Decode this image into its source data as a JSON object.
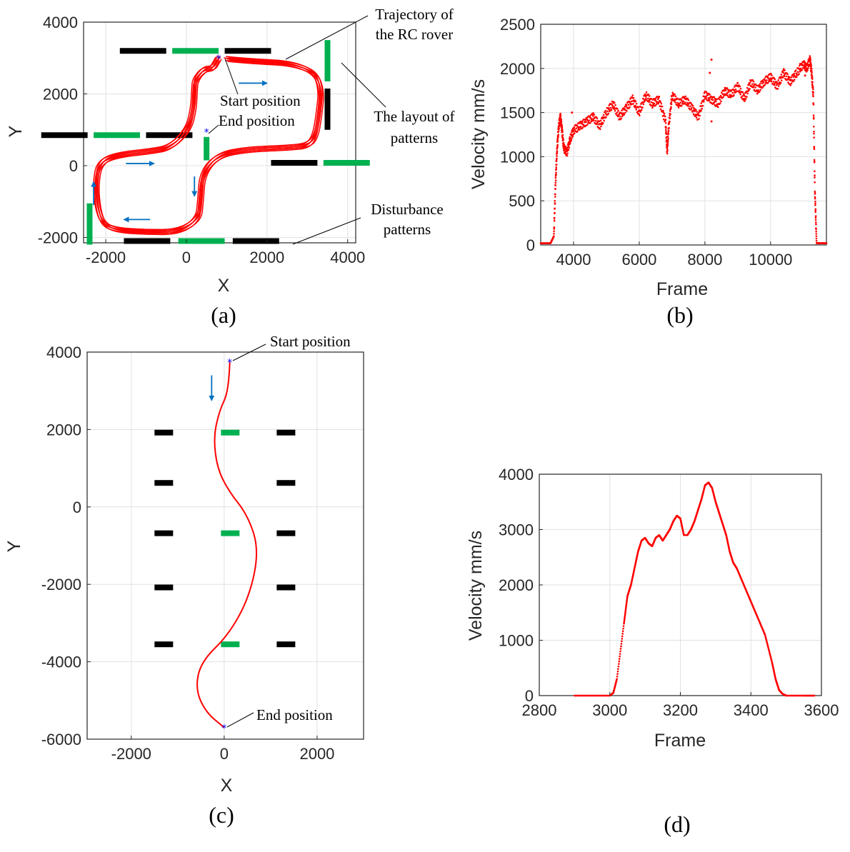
{
  "chart_data": [
    {
      "id": "a",
      "type": "trajectory",
      "panel_label": "(a)",
      "xlabel": "X",
      "ylabel": "Y",
      "xlim": [
        -2550,
        4200
      ],
      "ylim": [
        -2150,
        4000
      ],
      "xticks": [
        -2000,
        0,
        2000,
        4000
      ],
      "xtick_labels": [
        "-2000",
        "0",
        "2000",
        "4000"
      ],
      "yticks": [
        -2000,
        0,
        2000,
        4000
      ],
      "ytick_labels": [
        "-2000",
        "0",
        "2000",
        "4000"
      ],
      "colors": {
        "trajectory": "#ff0000",
        "arrow": "#0070c0",
        "pattern_black": "#000000",
        "pattern_green": "#00b050",
        "marker": "#0000ff"
      },
      "trajectory": [
        [
          800,
          3000
        ],
        [
          750,
          2900
        ],
        [
          650,
          2700
        ],
        [
          450,
          2700
        ],
        [
          220,
          2400
        ],
        [
          200,
          2100
        ],
        [
          180,
          1600
        ],
        [
          50,
          1000
        ],
        [
          -400,
          500
        ],
        [
          -900,
          400
        ],
        [
          -1700,
          300
        ],
        [
          -2150,
          100
        ],
        [
          -2250,
          -500
        ],
        [
          -2200,
          -1200
        ],
        [
          -2050,
          -1650
        ],
        [
          -1700,
          -1800
        ],
        [
          -1000,
          -1850
        ],
        [
          -200,
          -1850
        ],
        [
          300,
          -1500
        ],
        [
          350,
          -1000
        ],
        [
          400,
          -200
        ],
        [
          800,
          300
        ],
        [
          1500,
          450
        ],
        [
          2500,
          500
        ],
        [
          3000,
          550
        ],
        [
          3200,
          800
        ],
        [
          3300,
          1500
        ],
        [
          3350,
          2100
        ],
        [
          3200,
          2600
        ],
        [
          2600,
          2850
        ],
        [
          1800,
          2900
        ],
        [
          1200,
          2950
        ],
        [
          800,
          3000
        ]
      ],
      "start": [
        800,
        3000
      ],
      "end": [
        500,
        950
      ],
      "arrows": [
        [
          1300,
          2300,
          2000,
          2300
        ],
        [
          -1500,
          60,
          -800,
          60
        ],
        [
          200,
          -300,
          200,
          -850
        ],
        [
          -900,
          -1500,
          -1550,
          -1500
        ],
        [
          -2300,
          -1100,
          -2300,
          -450
        ]
      ],
      "patterns": [
        {
          "x0": -1650,
          "x1": -500,
          "y0": 3200,
          "y1": 3200,
          "color": "black"
        },
        {
          "x0": -350,
          "x1": 800,
          "y0": 3200,
          "y1": 3200,
          "color": "green"
        },
        {
          "x0": 950,
          "x1": 2100,
          "y0": 3200,
          "y1": 3200,
          "color": "black"
        },
        {
          "x0": -3600,
          "x1": -2450,
          "y0": 850,
          "y1": 850,
          "color": "black"
        },
        {
          "x0": -2300,
          "x1": -1150,
          "y0": 850,
          "y1": 850,
          "color": "green"
        },
        {
          "x0": -1000,
          "x1": 150,
          "y0": 850,
          "y1": 850,
          "color": "black"
        },
        {
          "x0": 3500,
          "x1": 3500,
          "y0": 3500,
          "y1": 2350,
          "color": "green"
        },
        {
          "x0": 3500,
          "x1": 3500,
          "y0": 2150,
          "y1": 1000,
          "color": "black"
        },
        {
          "x0": 500,
          "x1": 500,
          "y0": 800,
          "y1": 150,
          "color": "green"
        },
        {
          "x0": 2100,
          "x1": 3250,
          "y0": 80,
          "y1": 80,
          "color": "black"
        },
        {
          "x0": 3400,
          "x1": 4550,
          "y0": 80,
          "y1": 80,
          "color": "green"
        },
        {
          "x0": -2400,
          "x1": -2400,
          "y0": -1050,
          "y1": -2200,
          "color": "green"
        },
        {
          "x0": -1550,
          "x1": -400,
          "y0": -2100,
          "y1": -2100,
          "color": "black"
        },
        {
          "x0": -200,
          "x1": 950,
          "y0": -2100,
          "y1": -2100,
          "color": "green"
        },
        {
          "x0": 1150,
          "x1": 2300,
          "y0": -2100,
          "y1": -2100,
          "color": "black"
        }
      ],
      "annotations": [
        {
          "line1": "Trajectory of",
          "line2": "the RC rover"
        },
        {
          "line1": "The layout of",
          "line2": "patterns"
        },
        {
          "line1": "Disturbance",
          "line2": "patterns"
        },
        {
          "line1": "Start position"
        },
        {
          "line1": "End position"
        }
      ]
    },
    {
      "id": "b",
      "type": "scatter",
      "panel_label": "(b)",
      "xlabel": "Frame",
      "ylabel": "Velocity mm/s",
      "xlim": [
        3000,
        11700
      ],
      "ylim": [
        0,
        2500
      ],
      "xticks": [
        4000,
        6000,
        8000,
        10000
      ],
      "xtick_labels": [
        "4000",
        "6000",
        "8000",
        "10000"
      ],
      "yticks": [
        0,
        500,
        1000,
        1500,
        2000,
        2500
      ],
      "ytick_labels": [
        "0",
        "500",
        "1000",
        "1500",
        "2000",
        "2500"
      ],
      "color": "#ff0000",
      "x": [
        3000,
        3300,
        3400,
        3450,
        3500,
        3550,
        3600,
        3650,
        3700,
        3800,
        3900,
        4000,
        4200,
        4400,
        4600,
        4800,
        5000,
        5200,
        5400,
        5600,
        5800,
        6000,
        6200,
        6400,
        6600,
        6800,
        6850,
        6900,
        7000,
        7200,
        7400,
        7600,
        7800,
        8000,
        8200,
        8400,
        8600,
        8800,
        9000,
        9200,
        9400,
        9600,
        9800,
        10000,
        10200,
        10400,
        10600,
        10800,
        11000,
        11100,
        11200,
        11250,
        11300,
        11350,
        11400,
        11500,
        11700
      ],
      "y": [
        20,
        20,
        100,
        700,
        1100,
        1350,
        1450,
        1300,
        1100,
        1050,
        1200,
        1300,
        1350,
        1400,
        1450,
        1350,
        1500,
        1600,
        1450,
        1550,
        1650,
        1500,
        1700,
        1600,
        1650,
        1400,
        1050,
        1350,
        1700,
        1600,
        1650,
        1550,
        1450,
        1700,
        1650,
        1600,
        1750,
        1700,
        1800,
        1650,
        1850,
        1750,
        1850,
        1900,
        1800,
        1950,
        1850,
        1950,
        2050,
        2000,
        2100,
        1950,
        1700,
        600,
        20,
        20,
        20
      ],
      "outliers": [
        [
          8200,
          2100
        ],
        [
          8200,
          1400
        ],
        [
          8150,
          1950
        ],
        [
          3950,
          1500
        ],
        [
          10900,
          2050
        ],
        [
          11050,
          1920
        ]
      ]
    },
    {
      "id": "c",
      "type": "trajectory",
      "panel_label": "(c)",
      "xlabel": "X",
      "ylabel": "Y",
      "xlim": [
        -2950,
        3000
      ],
      "ylim": [
        -6000,
        4000
      ],
      "xticks": [
        -2000,
        0,
        2000
      ],
      "xtick_labels": [
        "-2000",
        "0",
        "2000"
      ],
      "yticks": [
        -6000,
        -4000,
        -2000,
        0,
        2000,
        4000
      ],
      "ytick_labels": [
        "-6000",
        "-4000",
        "-2000",
        "0",
        "2000",
        "4000"
      ],
      "colors": {
        "trajectory": "#ff0000",
        "arrow": "#0070c0",
        "pattern_black": "#000000",
        "pattern_green": "#00b050",
        "marker": "#0000ff"
      },
      "trajectory": [
        [
          120,
          3750
        ],
        [
          100,
          3000
        ],
        [
          -100,
          2500
        ],
        [
          -230,
          1800
        ],
        [
          -150,
          1000
        ],
        [
          100,
          400
        ],
        [
          500,
          -200
        ],
        [
          750,
          -1100
        ],
        [
          550,
          -2300
        ],
        [
          100,
          -3300
        ],
        [
          -500,
          -4000
        ],
        [
          -620,
          -4700
        ],
        [
          -400,
          -5300
        ],
        [
          0,
          -5700
        ]
      ],
      "start": [
        120,
        3750
      ],
      "end": [
        0,
        -5700
      ],
      "arrows": [
        [
          -270,
          3400,
          -270,
          2750
        ]
      ],
      "patterns": [
        {
          "x": -1300,
          "y": 1920,
          "color": "black"
        },
        {
          "x": 130,
          "y": 1920,
          "color": "green"
        },
        {
          "x": 1330,
          "y": 1920,
          "color": "black"
        },
        {
          "x": -1300,
          "y": 620,
          "color": "black"
        },
        {
          "x": 1330,
          "y": 620,
          "color": "black"
        },
        {
          "x": -1300,
          "y": -680,
          "color": "black"
        },
        {
          "x": 130,
          "y": -680,
          "color": "green"
        },
        {
          "x": 1330,
          "y": -680,
          "color": "black"
        },
        {
          "x": -1300,
          "y": -2080,
          "color": "black"
        },
        {
          "x": 1330,
          "y": -2080,
          "color": "black"
        },
        {
          "x": -1300,
          "y": -3550,
          "color": "black"
        },
        {
          "x": 130,
          "y": -3550,
          "color": "green"
        },
        {
          "x": 1330,
          "y": -3550,
          "color": "black"
        }
      ],
      "annotations": [
        {
          "line1": "Start position"
        },
        {
          "line1": "End position"
        }
      ]
    },
    {
      "id": "d",
      "type": "scatter",
      "panel_label": "(d)",
      "xlabel": "Frame",
      "ylabel": "Velocity mm/s",
      "xlim": [
        2800,
        3600
      ],
      "ylim": [
        0,
        4000
      ],
      "xticks": [
        2800,
        3000,
        3200,
        3400,
        3600
      ],
      "xtick_labels": [
        "2800",
        "3000",
        "3200",
        "3400",
        "3600"
      ],
      "yticks": [
        0,
        1000,
        2000,
        3000,
        4000
      ],
      "ytick_labels": [
        "0",
        "1000",
        "2000",
        "3000",
        "4000"
      ],
      "color": "#ff0000",
      "x": [
        2900,
        2950,
        3000,
        3010,
        3020,
        3040,
        3050,
        3060,
        3070,
        3080,
        3090,
        3100,
        3110,
        3120,
        3130,
        3140,
        3150,
        3160,
        3170,
        3180,
        3190,
        3200,
        3210,
        3220,
        3230,
        3240,
        3250,
        3260,
        3270,
        3280,
        3290,
        3300,
        3310,
        3320,
        3330,
        3340,
        3350,
        3360,
        3380,
        3400,
        3420,
        3440,
        3460,
        3470,
        3480,
        3490,
        3500,
        3550,
        3580
      ],
      "y": [
        0,
        0,
        0,
        50,
        300,
        1300,
        1800,
        2000,
        2300,
        2600,
        2800,
        2850,
        2750,
        2700,
        2850,
        2900,
        2800,
        2900,
        3000,
        3150,
        3250,
        3200,
        2900,
        2900,
        3000,
        3150,
        3350,
        3550,
        3800,
        3850,
        3750,
        3500,
        3300,
        3100,
        2900,
        2600,
        2400,
        2300,
        2000,
        1700,
        1400,
        1100,
        600,
        300,
        100,
        30,
        0,
        0,
        0
      ]
    }
  ]
}
